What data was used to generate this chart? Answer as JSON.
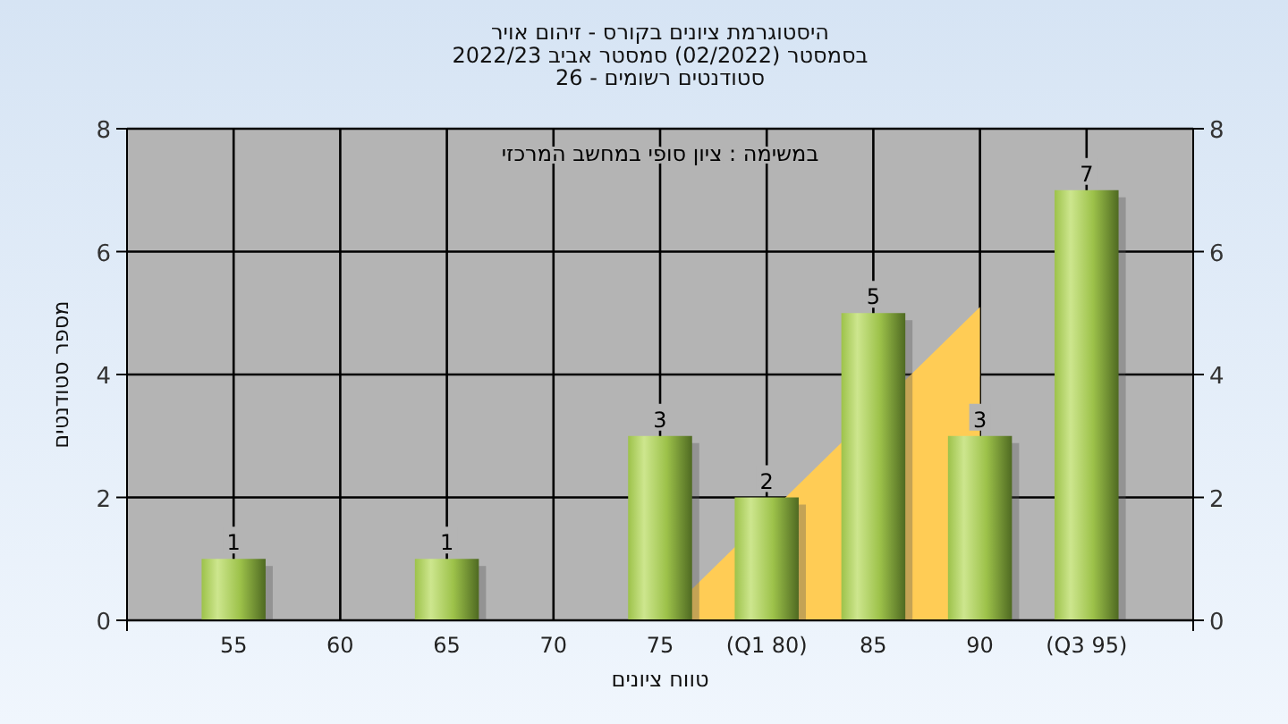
{
  "chart_data": {
    "type": "bar",
    "title": "היסטוגרמת ציונים בקורס - זיהום אויר",
    "subtitle": "בסמסטר  (02/2022)  סמסטר אביב 2022/23\nסטודנטים רשומים - 26",
    "xlabel": "טווח ציונים",
    "ylabel": "מספר סטודנטים",
    "annotations": [
      "במשימה : ציון סופי במחשב המרכזי"
    ],
    "categories": [
      "55",
      "60",
      "65",
      "70",
      "75",
      "(Q1 80)",
      "85",
      "90",
      "(Q3 95)"
    ],
    "series": [
      {
        "type": "area",
        "color": "#ffcc55",
        "values": [
          null,
          null,
          null,
          null,
          0,
          null,
          null,
          5.1,
          null
        ]
      },
      {
        "color": "#9dc24a",
        "values": [
          1,
          0,
          1,
          0,
          3,
          2,
          5,
          3,
          7
        ],
        "value_labels": [
          "1",
          null,
          "1",
          null,
          "3",
          "2",
          "5",
          "3",
          "7"
        ]
      }
    ],
    "ylim": [
      0,
      8
    ],
    "yticks": [
      0,
      2,
      4,
      6,
      8
    ],
    "y2lim": [
      0,
      8
    ],
    "y2ticks": [
      0,
      2,
      4,
      6,
      8
    ],
    "grid": true
  }
}
